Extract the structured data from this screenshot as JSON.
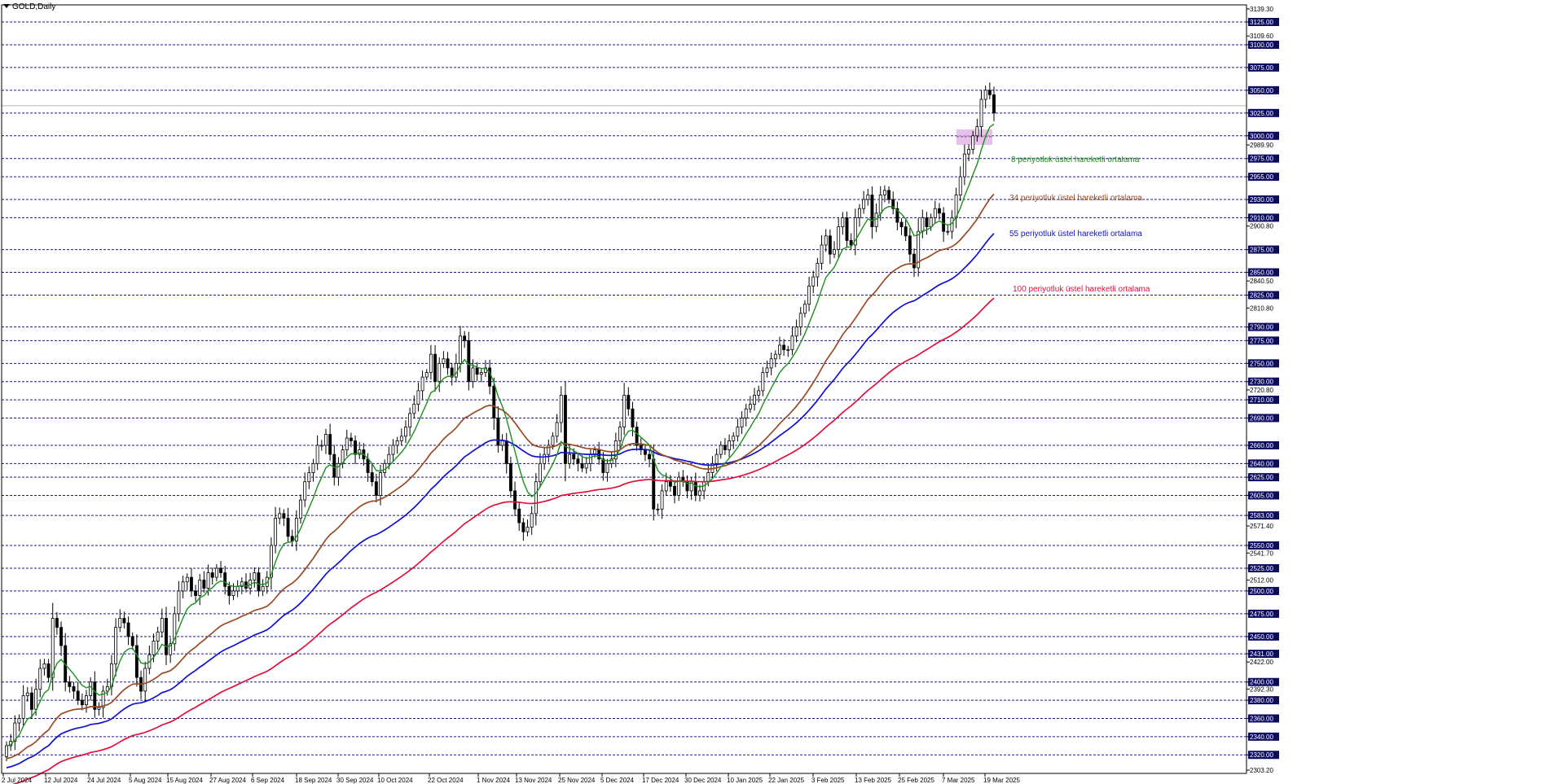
{
  "header": {
    "symbol_label": "GOLD,Daily"
  },
  "colors": {
    "ema8": "#1a8f1a",
    "ema34": "#9a4a22",
    "ema55": "#1010d0",
    "ema100": "#e0103a",
    "grid": "#1a1a8a",
    "highlight_axis": "#0b0b60",
    "zone": "#d9a8e0"
  },
  "chart_data": {
    "type": "candlestick",
    "title": "",
    "xlabel": "",
    "ylabel": "",
    "ylim": [
      2303.2,
      3139.3
    ],
    "grid": true,
    "y_ticks": [
      "3139.30",
      "3125.00",
      "3109.60",
      "3100.00",
      "3075.00",
      "3050.00",
      "3025.00",
      "3000.00",
      "2989.90",
      "2975.00",
      "2955.00",
      "2930.00",
      "2910.00",
      "2900.80",
      "2875.00",
      "2850.00",
      "2840.50",
      "2825.00",
      "2810.80",
      "2790.00",
      "2775.00",
      "2750.00",
      "2730.00",
      "2720.80",
      "2710.00",
      "2690.00",
      "2660.00",
      "2640.00",
      "2625.00",
      "2605.00",
      "2583.00",
      "2571.40",
      "2550.00",
      "2541.70",
      "2525.00",
      "2512.00",
      "2500.00",
      "2475.00",
      "2450.00",
      "2431.00",
      "2422.00",
      "2400.00",
      "2392.30",
      "2380.00",
      "2360.00",
      "2340.00",
      "2320.00",
      "2303.20"
    ],
    "highlighted_levels": [
      "3125.00",
      "3100.00",
      "3075.00",
      "3050.00",
      "3025.00",
      "3000.00",
      "2975.00",
      "2955.00",
      "2930.00",
      "2910.00",
      "2875.00",
      "2850.00",
      "2825.00",
      "2790.00",
      "2775.00",
      "2750.00",
      "2730.00",
      "2710.00",
      "2690.00",
      "2660.00",
      "2640.00",
      "2625.00",
      "2605.00",
      "2583.00",
      "2550.00",
      "2525.00",
      "2500.00",
      "2475.00",
      "2450.00",
      "2431.00",
      "2400.00",
      "2380.00",
      "2360.00",
      "2340.00",
      "2320.00"
    ],
    "x_labels": [
      "2 Jul 2024",
      "12 Jul 2024",
      "24 Jul 2024",
      "5 Aug 2024",
      "15 Aug 2024",
      "27 Aug 2024",
      "6 Sep 2024",
      "18 Sep 2024",
      "30 Sep 2024",
      "10 Oct 2024",
      "22 Oct 2024",
      "1 Nov 2024",
      "13 Nov 2024",
      "25 Nov 2024",
      "5 Dec 2024",
      "17 Dec 2024",
      "30 Dec 2024",
      "10 Jan 2025",
      "22 Jan 2025",
      "3 Feb 2025",
      "13 Feb 2025",
      "25 Feb 2025",
      "7 Mar 2025",
      "19 Mar 2025"
    ],
    "closes": [
      2330,
      2335,
      2355,
      2360,
      2385,
      2388,
      2370,
      2392,
      2415,
      2420,
      2405,
      2470,
      2460,
      2440,
      2400,
      2395,
      2390,
      2380,
      2375,
      2385,
      2400,
      2370,
      2372,
      2390,
      2395,
      2420,
      2460,
      2470,
      2465,
      2450,
      2440,
      2405,
      2390,
      2415,
      2430,
      2445,
      2455,
      2470,
      2430,
      2442,
      2475,
      2500,
      2510,
      2515,
      2500,
      2495,
      2512,
      2503,
      2520,
      2515,
      2525,
      2520,
      2505,
      2495,
      2500,
      2505,
      2510,
      2503,
      2512,
      2520,
      2500,
      2505,
      2515,
      2550,
      2580,
      2585,
      2580,
      2560,
      2555,
      2580,
      2600,
      2620,
      2630,
      2640,
      2660,
      2660,
      2672,
      2650,
      2625,
      2640,
      2655,
      2668,
      2665,
      2650,
      2655,
      2645,
      2630,
      2620,
      2605,
      2630,
      2640,
      2650,
      2660,
      2665,
      2670,
      2680,
      2695,
      2705,
      2720,
      2735,
      2740,
      2760,
      2730,
      2750,
      2755,
      2745,
      2735,
      2750,
      2780,
      2775,
      2730,
      2745,
      2738,
      2740,
      2745,
      2725,
      2690,
      2660,
      2665,
      2640,
      2610,
      2590,
      2575,
      2565,
      2570,
      2585,
      2620,
      2640,
      2650,
      2660,
      2670,
      2685,
      2715,
      2640,
      2650,
      2645,
      2640,
      2635,
      2640,
      2650,
      2655,
      2645,
      2630,
      2640,
      2645,
      2665,
      2680,
      2715,
      2700,
      2680,
      2660,
      2655,
      2650,
      2645,
      2590,
      2590,
      2610,
      2620,
      2615,
      2605,
      2625,
      2620,
      2610,
      2620,
      2605,
      2610,
      2620,
      2630,
      2640,
      2650,
      2660,
      2655,
      2665,
      2670,
      2680,
      2690,
      2700,
      2705,
      2715,
      2720,
      2740,
      2745,
      2755,
      2760,
      2770,
      2765,
      2765,
      2780,
      2790,
      2805,
      2815,
      2835,
      2845,
      2860,
      2880,
      2890,
      2870,
      2875,
      2900,
      2910,
      2885,
      2880,
      2910,
      2920,
      2930,
      2935,
      2900,
      2915,
      2935,
      2940,
      2930,
      2920,
      2905,
      2900,
      2890,
      2870,
      2855,
      2895,
      2910,
      2900,
      2910,
      2920,
      2915,
      2895,
      2895,
      2910,
      2935,
      2955,
      2980,
      2985,
      3000,
      3010,
      3040,
      3050,
      3045,
      3025
    ]
  },
  "legend": {
    "ema8": "8 periyotluk üstel hareketli ortalama",
    "ema34": "34 periyotluk üstel hareketli ortalama",
    "ema55": "55 periyotluk üstel hareketli ortalama",
    "ema100": "100 periyotluk üstel hareketli ortalama"
  }
}
